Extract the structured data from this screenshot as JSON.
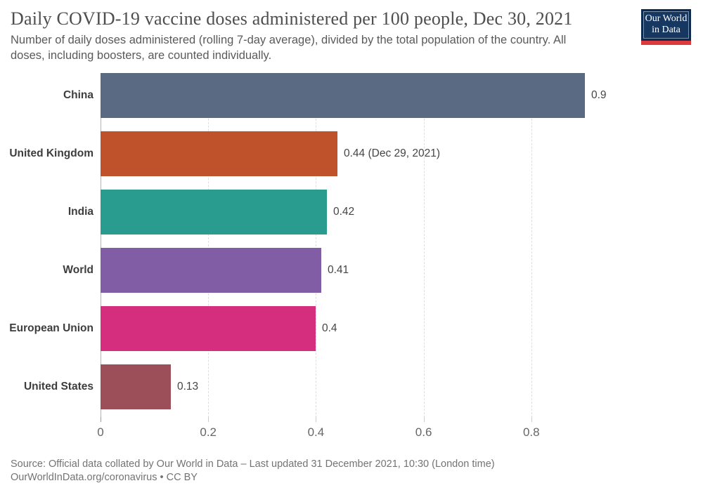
{
  "header": {
    "title": "Daily COVID-19 vaccine doses administered per 100 people, Dec 30, 2021",
    "subtitle_lines": [
      "Number of daily doses administered (rolling 7-day average), divided by the total population of the country. All",
      "doses, including boosters, are counted individually."
    ]
  },
  "logo": {
    "line1": "Our World",
    "line2": "in Data",
    "bg_color": "#163760",
    "accent_color": "#dc3a3c"
  },
  "chart_data": {
    "type": "bar",
    "orientation": "horizontal",
    "title": "Daily COVID-19 vaccine doses administered per 100 people, Dec 30, 2021",
    "categories": [
      "China",
      "United Kingdom",
      "India",
      "World",
      "European Union",
      "United States"
    ],
    "values": [
      0.9,
      0.44,
      0.42,
      0.41,
      0.4,
      0.13
    ],
    "value_labels": [
      "0.9",
      "0.44 (Dec 29, 2021)",
      "0.42",
      "0.41",
      "0.4",
      "0.13"
    ],
    "bar_colors": [
      "#596a82",
      "#bf522b",
      "#2a9c8f",
      "#815da6",
      "#d62e7e",
      "#9c4f58"
    ],
    "xlabel": "",
    "ylabel": "",
    "xlim": [
      0,
      1.1
    ],
    "x_ticks": [
      0,
      0.2,
      0.4,
      0.6,
      0.8
    ],
    "x_tick_labels": [
      "0",
      "0.2",
      "0.4",
      "0.6",
      "0.8"
    ],
    "grid": "vertical-dashed",
    "legend": "none"
  },
  "footer": {
    "line1": "Source: Official data collated by Our World in Data – Last updated 31 December 2021, 10:30 (London time)",
    "line2": "OurWorldInData.org/coronavirus • CC BY"
  }
}
